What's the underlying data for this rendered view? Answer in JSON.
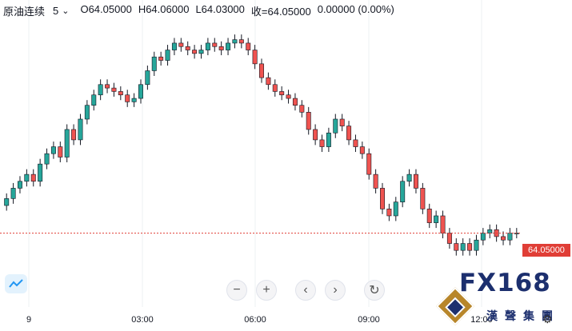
{
  "legend": {
    "symbol": "原油连续",
    "interval": "5",
    "open_label": "O64.05000",
    "high_label": "H64.06000",
    "low_label": "L64.03000",
    "close_label": "收=64.05000",
    "change_label": "0.00000 (0.00%)"
  },
  "price_tag": "64.05000",
  "controls": {
    "zoom_out": "−",
    "zoom_in": "+",
    "scroll_left": "‹",
    "scroll_right": "›",
    "reset": "↻"
  },
  "brand": {
    "name": "FX168",
    "subtitle": "漢聲集團"
  },
  "colors": {
    "up": "#26a69a",
    "down": "#ef5350",
    "body": "#131722",
    "grid": "#eef0f3",
    "last_price": "#e03e36"
  },
  "icons": [
    "chevron-down-icon",
    "tradingview-logo-icon",
    "zoom-out-icon",
    "zoom-in-icon",
    "scroll-left-icon",
    "scroll-right-icon",
    "reset-icon",
    "gear-icon"
  ],
  "chart_data": {
    "type": "candlestick",
    "x_ticks": [
      "9",
      "03:00",
      "06:00",
      "09:00",
      "12:00"
    ],
    "last_price": 64.05,
    "ohlc": {
      "open": 64.05,
      "high": 64.06,
      "low": 64.03,
      "close": 64.05,
      "change": "0.00000 (0.00%)"
    },
    "series": [
      {
        "name": "原油连续",
        "values": [
          64.15,
          64.18,
          64.2,
          64.22,
          64.2,
          64.25,
          64.28,
          64.3,
          64.27,
          64.35,
          64.32,
          64.38,
          64.42,
          64.45,
          64.48,
          64.47,
          64.46,
          64.45,
          64.43,
          64.44,
          64.48,
          64.52,
          64.56,
          64.55,
          64.58,
          64.6,
          64.59,
          64.58,
          64.57,
          64.58,
          64.6,
          64.59,
          64.58,
          64.6,
          64.61,
          64.6,
          64.58,
          64.54,
          64.5,
          64.48,
          64.46,
          64.45,
          64.44,
          64.42,
          64.4,
          64.35,
          64.32,
          64.3,
          64.34,
          64.38,
          64.36,
          64.32,
          64.3,
          64.28,
          64.22,
          64.18,
          64.12,
          64.1,
          64.14,
          64.2,
          64.22,
          64.18,
          64.12,
          64.08,
          64.1,
          64.05,
          64.02,
          64.0,
          64.02,
          64.0,
          64.03,
          64.05,
          64.06,
          64.04,
          64.03,
          64.05,
          64.05
        ]
      }
    ]
  }
}
